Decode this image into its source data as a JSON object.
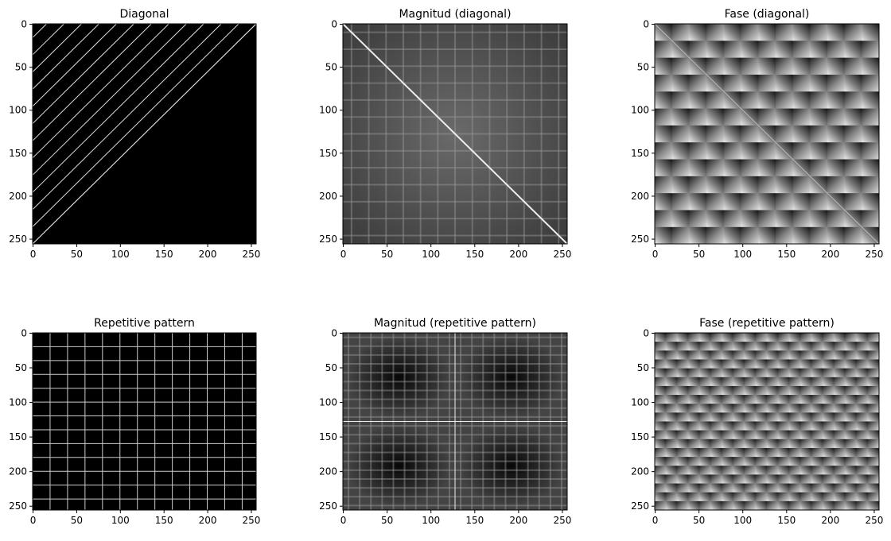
{
  "chart_data": [
    {
      "type": "image",
      "title": "Diagonal",
      "xlim": [
        -0.5,
        255.5
      ],
      "ylim": [
        255.5,
        -0.5
      ],
      "xticks": [
        0,
        50,
        100,
        150,
        200,
        250
      ],
      "yticks": [
        0,
        50,
        100,
        150,
        200,
        250
      ]
    },
    {
      "type": "image",
      "title": "Magnitud (diagonal)",
      "xlim": [
        -0.5,
        255.5
      ],
      "ylim": [
        255.5,
        -0.5
      ],
      "xticks": [
        0,
        50,
        100,
        150,
        200,
        250
      ],
      "yticks": [
        0,
        50,
        100,
        150,
        200,
        250
      ]
    },
    {
      "type": "image",
      "title": "Fase (diagonal)",
      "xlim": [
        -0.5,
        255.5
      ],
      "ylim": [
        255.5,
        -0.5
      ],
      "xticks": [
        0,
        50,
        100,
        150,
        200,
        250
      ],
      "yticks": [
        0,
        50,
        100,
        150,
        200,
        250
      ]
    },
    {
      "type": "image",
      "title": "Repetitive pattern",
      "xlim": [
        -0.5,
        255.5
      ],
      "ylim": [
        255.5,
        -0.5
      ],
      "xticks": [
        0,
        50,
        100,
        150,
        200,
        250
      ],
      "yticks": [
        0,
        50,
        100,
        150,
        200,
        250
      ]
    },
    {
      "type": "image",
      "title": "Magnitud (repetitive pattern)",
      "xlim": [
        -0.5,
        255.5
      ],
      "ylim": [
        255.5,
        -0.5
      ],
      "xticks": [
        0,
        50,
        100,
        150,
        200,
        250
      ],
      "yticks": [
        0,
        50,
        100,
        150,
        200,
        250
      ]
    },
    {
      "type": "image",
      "title": "Fase (repetitive pattern)",
      "xlim": [
        -0.5,
        255.5
      ],
      "ylim": [
        255.5,
        -0.5
      ],
      "xticks": [
        0,
        50,
        100,
        150,
        200,
        250
      ],
      "yticks": [
        0,
        50,
        100,
        150,
        200,
        250
      ]
    }
  ]
}
